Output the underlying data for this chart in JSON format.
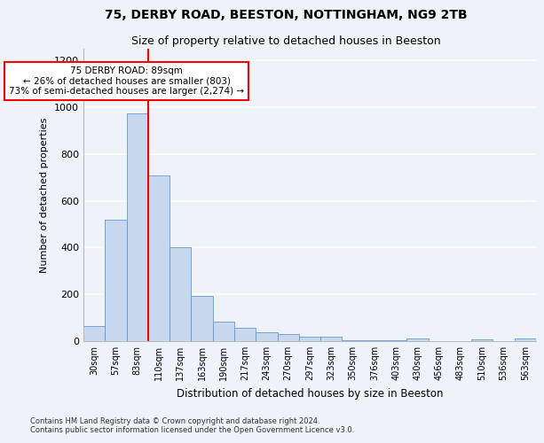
{
  "title1": "75, DERBY ROAD, BEESTON, NOTTINGHAM, NG9 2TB",
  "title2": "Size of property relative to detached houses in Beeston",
  "xlabel": "Distribution of detached houses by size in Beeston",
  "ylabel": "Number of detached properties",
  "footnote1": "Contains HM Land Registry data © Crown copyright and database right 2024.",
  "footnote2": "Contains public sector information licensed under the Open Government Licence v3.0.",
  "categories": [
    "30sqm",
    "57sqm",
    "83sqm",
    "110sqm",
    "137sqm",
    "163sqm",
    "190sqm",
    "217sqm",
    "243sqm",
    "270sqm",
    "297sqm",
    "323sqm",
    "350sqm",
    "376sqm",
    "403sqm",
    "430sqm",
    "456sqm",
    "483sqm",
    "510sqm",
    "536sqm",
    "563sqm"
  ],
  "values": [
    65,
    520,
    975,
    710,
    400,
    195,
    85,
    55,
    38,
    30,
    20,
    18,
    5,
    4,
    3,
    10,
    0,
    0,
    8,
    0,
    10
  ],
  "bar_color": "#c8d9ef",
  "bar_edge_color": "#6699cc",
  "red_line_color": "red",
  "annotation_line1": "75 DERBY ROAD: 89sqm",
  "annotation_line2": "← 26% of detached houses are smaller (803)",
  "annotation_line3": "73% of semi-detached houses are larger (2,274) →",
  "annotation_box_color": "white",
  "annotation_box_edge_color": "red",
  "ylim": [
    0,
    1250
  ],
  "yticks": [
    0,
    200,
    400,
    600,
    800,
    1000,
    1200
  ],
  "background_color": "#eef2f9",
  "grid_color": "white"
}
